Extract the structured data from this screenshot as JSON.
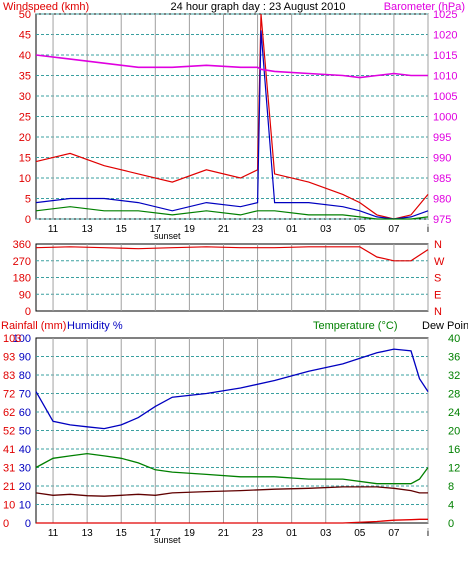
{
  "header": {
    "title": "24 hour graph day : 23 August 2010",
    "left_label": "Windspeed (kmh)",
    "right_label": "Barometer (hPa)"
  },
  "colors": {
    "wind_gust": "#e00000",
    "wind_avg": "#0000c0",
    "wind_low": "#008000",
    "barometer": "#e000e0",
    "direction": "#e00000",
    "humidity": "#0000c0",
    "temperature": "#008000",
    "dewpoint": "#600000",
    "rain": "#e00000",
    "grid_v": "#a0a0a0",
    "grid_h": "#3aa0a0",
    "frame": "#000000"
  },
  "x_axis": {
    "ticks": [
      "11",
      "13",
      "15",
      "17",
      "19",
      "21",
      "23",
      "01",
      "03",
      "05",
      "07",
      "i"
    ],
    "sunset_label": "sunset"
  },
  "panel1": {
    "left_ticks": [
      "50",
      "45",
      "40",
      "35",
      "30",
      "25",
      "20",
      "15",
      "10",
      "5",
      "0"
    ],
    "right_ticks": [
      "1025",
      "1020",
      "1015",
      "1010",
      "1005",
      "1000",
      "995",
      "990",
      "985",
      "980",
      "975"
    ]
  },
  "panel2": {
    "left_ticks": [
      "360",
      "270",
      "180",
      "90",
      "0"
    ],
    "right_labels": [
      "N",
      "W",
      "S",
      "E",
      "N"
    ]
  },
  "panel3": {
    "left_label_rain": "Rainfall (mm)",
    "left_label_hum": "Humidity %",
    "right_label_temp": "Temperature (°C)",
    "right_label_dew": "Dew Point",
    "hum_ticks": [
      "100",
      "90",
      "80",
      "70",
      "60",
      "50",
      "40",
      "30",
      "20",
      "10",
      "0"
    ],
    "rain_ticks": [
      "103",
      "93",
      "83",
      "72",
      "62",
      "52",
      "41",
      "31",
      "21",
      "10",
      "0"
    ],
    "temp_ticks": [
      "40",
      "36",
      "32",
      "28",
      "24",
      "20",
      "16",
      "12",
      "8",
      "4",
      "0"
    ]
  },
  "chart_data": [
    {
      "type": "line",
      "title": "24 hour graph day : 23 August 2010",
      "ylabel": "Windspeed (kmh)",
      "y2label": "Barometer (hPa)",
      "x_hours": [
        10,
        12,
        14,
        16,
        18,
        20,
        22,
        23,
        23.2,
        24,
        26,
        28,
        29,
        30,
        31,
        32,
        33
      ],
      "ylim": [
        0,
        50
      ],
      "y2lim": [
        975,
        1025
      ],
      "series": [
        {
          "axis": "left",
          "values": [
            14,
            16,
            13,
            11,
            9,
            12,
            10,
            12,
            50,
            11,
            9,
            6,
            4,
            1,
            0,
            1,
            6
          ]
        },
        {
          "axis": "left",
          "values": [
            4,
            5,
            5,
            4,
            2,
            4,
            3,
            4,
            46,
            4,
            4,
            3,
            2,
            0.5,
            0,
            0.5,
            2
          ]
        },
        {
          "axis": "left",
          "values": [
            2,
            3,
            2,
            2,
            1,
            2,
            1,
            2,
            2,
            2,
            1,
            1,
            0.5,
            0,
            0,
            0,
            0.5
          ]
        },
        {
          "axis": "right",
          "values": [
            1015,
            1014,
            1013,
            1012,
            1012,
            1012.5,
            1012,
            1012,
            1011.5,
            1011,
            1010.5,
            1010,
            1009.5,
            1010,
            1010.5,
            1010,
            1010
          ]
        }
      ]
    },
    {
      "type": "line",
      "ylim": [
        0,
        360
      ],
      "x_hours": [
        10,
        12,
        14,
        16,
        18,
        20,
        22,
        24,
        26,
        28,
        29,
        30,
        31,
        32,
        33
      ],
      "series": [
        {
          "values": [
            340,
            345,
            340,
            335,
            340,
            345,
            340,
            340,
            345,
            345,
            345,
            290,
            270,
            270,
            330
          ]
        }
      ]
    },
    {
      "type": "line",
      "ylabel": "Rainfall (mm) / Humidity %",
      "y2label": "Temperature (°C) / Dew Point",
      "ylim": [
        0,
        100
      ],
      "y2lim": [
        0,
        40
      ],
      "x_hours": [
        10,
        11,
        12,
        13,
        14,
        15,
        16,
        17,
        18,
        20,
        22,
        24,
        26,
        28,
        30,
        31,
        32,
        32.5,
        33
      ],
      "series": [
        {
          "axis": "left",
          "values": [
            71,
            55,
            53,
            52,
            51,
            53,
            57,
            63,
            68,
            70,
            73,
            77,
            82,
            86,
            92,
            94,
            93,
            78,
            71
          ]
        },
        {
          "axis": "right",
          "values": [
            12,
            14,
            14.5,
            15,
            14.5,
            14,
            13,
            11.5,
            11,
            10.5,
            10,
            10,
            9.5,
            9.5,
            8.5,
            8.5,
            8.5,
            9.5,
            12
          ]
        },
        {
          "axis": "right",
          "values": [
            6.5,
            6,
            6.2,
            5.9,
            5.8,
            6,
            6.2,
            6,
            6.5,
            6.8,
            7,
            7.3,
            7.5,
            7.8,
            7.8,
            7.5,
            7,
            6.5,
            6.5
          ]
        },
        {
          "axis": "left",
          "values": [
            0,
            0,
            0,
            0,
            0,
            0,
            0,
            0,
            0,
            0,
            0,
            0,
            0,
            0,
            0.8,
            1.5,
            1.8,
            2,
            2
          ]
        }
      ]
    }
  ]
}
